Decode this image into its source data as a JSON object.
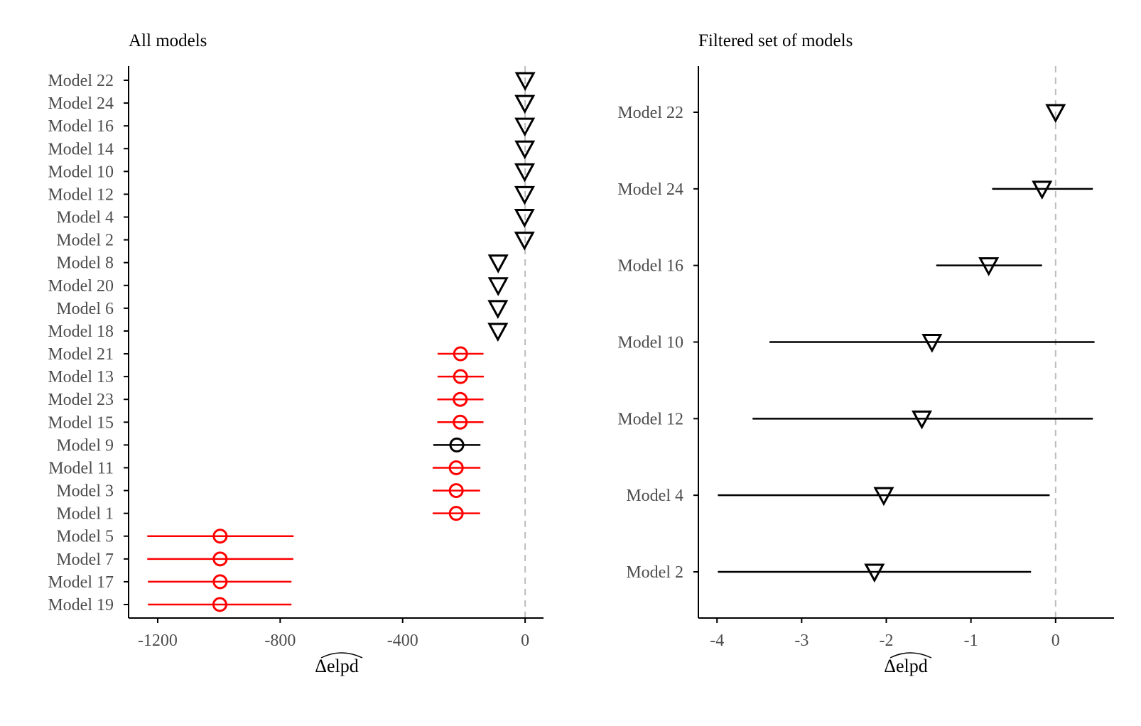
{
  "chart_data": [
    {
      "type": "scatter",
      "title": "All models",
      "xlabel": "Δelpd",
      "xlim": [
        -1295,
        60
      ],
      "xticks": [
        -1200,
        -800,
        -400,
        0
      ],
      "xtick_labels": [
        "-1200",
        "-800",
        "-400",
        "0"
      ],
      "reference_line": 0,
      "grid": false,
      "points": [
        {
          "model": "Model 22",
          "value": 0,
          "lo": 0,
          "hi": 0,
          "shape": "triangle",
          "color": "#000000"
        },
        {
          "model": "Model 24",
          "value": -1,
          "lo": -1,
          "hi": -1,
          "shape": "triangle",
          "color": "#000000"
        },
        {
          "model": "Model 16",
          "value": -1,
          "lo": -1,
          "hi": -1,
          "shape": "triangle",
          "color": "#000000"
        },
        {
          "model": "Model 14",
          "value": -1,
          "lo": -1,
          "hi": -1,
          "shape": "triangle",
          "color": "#000000"
        },
        {
          "model": "Model 10",
          "value": -1.5,
          "lo": -1.5,
          "hi": -1.5,
          "shape": "triangle",
          "color": "#000000"
        },
        {
          "model": "Model 12",
          "value": -1.6,
          "lo": -1.6,
          "hi": -1.6,
          "shape": "triangle",
          "color": "#000000"
        },
        {
          "model": "Model 4",
          "value": -2,
          "lo": -2,
          "hi": -2,
          "shape": "triangle",
          "color": "#000000"
        },
        {
          "model": "Model 2",
          "value": -2.1,
          "lo": -2.1,
          "hi": -2.1,
          "shape": "triangle",
          "color": "#000000"
        },
        {
          "model": "Model 8",
          "value": -88,
          "lo": -88,
          "hi": -88,
          "shape": "triangle",
          "color": "#000000"
        },
        {
          "model": "Model 20",
          "value": -88,
          "lo": -88,
          "hi": -88,
          "shape": "triangle",
          "color": "#000000"
        },
        {
          "model": "Model 6",
          "value": -89,
          "lo": -89,
          "hi": -89,
          "shape": "triangle",
          "color": "#000000"
        },
        {
          "model": "Model 18",
          "value": -89,
          "lo": -89,
          "hi": -89,
          "shape": "triangle",
          "color": "#000000"
        },
        {
          "model": "Model 21",
          "value": -211,
          "lo": -286,
          "hi": -136,
          "shape": "circle",
          "color": "#ff0000"
        },
        {
          "model": "Model 13",
          "value": -211,
          "lo": -286,
          "hi": -135,
          "shape": "circle",
          "color": "#ff0000"
        },
        {
          "model": "Model 23",
          "value": -212,
          "lo": -287,
          "hi": -136,
          "shape": "circle",
          "color": "#ff0000"
        },
        {
          "model": "Model 15",
          "value": -212,
          "lo": -287,
          "hi": -136,
          "shape": "circle",
          "color": "#ff0000"
        },
        {
          "model": "Model 9",
          "value": -223,
          "lo": -300,
          "hi": -146,
          "shape": "circle",
          "color": "#000000"
        },
        {
          "model": "Model 11",
          "value": -225,
          "lo": -302,
          "hi": -146,
          "shape": "circle",
          "color": "#ff0000"
        },
        {
          "model": "Model 3",
          "value": -225,
          "lo": -302,
          "hi": -147,
          "shape": "circle",
          "color": "#ff0000"
        },
        {
          "model": "Model 1",
          "value": -225,
          "lo": -302,
          "hi": -147,
          "shape": "circle",
          "color": "#ff0000"
        },
        {
          "model": "Model 5",
          "value": -996,
          "lo": -1234,
          "hi": -756,
          "shape": "circle",
          "color": "#ff0000"
        },
        {
          "model": "Model 7",
          "value": -996,
          "lo": -1234,
          "hi": -757,
          "shape": "circle",
          "color": "#ff0000"
        },
        {
          "model": "Model 17",
          "value": -996,
          "lo": -1232,
          "hi": -763,
          "shape": "circle",
          "color": "#ff0000"
        },
        {
          "model": "Model 19",
          "value": -997,
          "lo": -1232,
          "hi": -763,
          "shape": "circle",
          "color": "#ff0000"
        }
      ]
    },
    {
      "type": "scatter",
      "title": "Filtered set of models",
      "xlabel": "Δelpd",
      "xlim": [
        -4.22,
        0.69
      ],
      "xticks": [
        -4,
        -3,
        -2,
        -1,
        0
      ],
      "xtick_labels": [
        "-4",
        "-3",
        "-2",
        "-1",
        "0"
      ],
      "reference_line": 0,
      "grid": false,
      "points": [
        {
          "model": "Model 22",
          "value": 0,
          "lo": 0,
          "hi": 0,
          "shape": "triangle",
          "color": "#000000"
        },
        {
          "model": "Model 24",
          "value": -0.16,
          "lo": -0.75,
          "hi": 0.44,
          "shape": "triangle",
          "color": "#000000"
        },
        {
          "model": "Model 16",
          "value": -0.79,
          "lo": -1.41,
          "hi": -0.16,
          "shape": "triangle",
          "color": "#000000"
        },
        {
          "model": "Model 10",
          "value": -1.46,
          "lo": -3.38,
          "hi": 0.46,
          "shape": "triangle",
          "color": "#000000"
        },
        {
          "model": "Model 12",
          "value": -1.58,
          "lo": -3.58,
          "hi": 0.44,
          "shape": "triangle",
          "color": "#000000"
        },
        {
          "model": "Model 4",
          "value": -2.03,
          "lo": -3.99,
          "hi": -0.07,
          "shape": "triangle",
          "color": "#000000"
        },
        {
          "model": "Model 2",
          "value": -2.14,
          "lo": -3.99,
          "hi": -0.29,
          "shape": "triangle",
          "color": "#000000"
        }
      ]
    }
  ]
}
